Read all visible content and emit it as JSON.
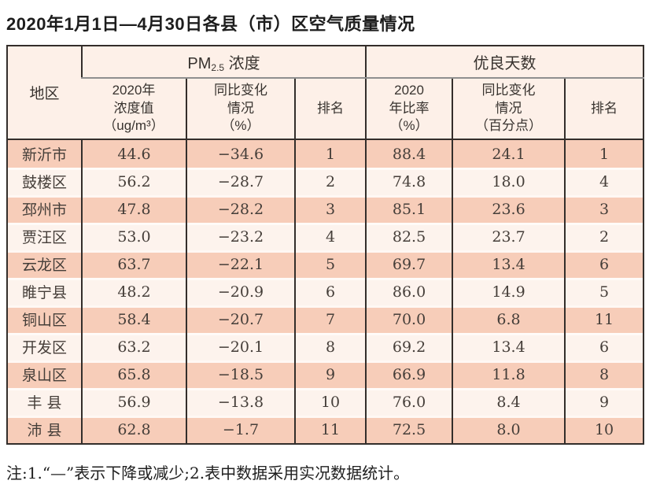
{
  "title": "2020年1月1日—4月30日各县（市）区空气质量情况",
  "table": {
    "region_header": "地区",
    "pm_group": {
      "prefix": "PM",
      "sub": "2.5",
      "suffix": " 浓度"
    },
    "days_group_label": "优良天数",
    "columns": [
      "2020年\n浓度值\n（ug/m³）",
      "同比变化\n情况\n（%）",
      "排名",
      "2020\n年比率\n（%）",
      "同比变化\n情况\n（百分点）",
      "排名"
    ],
    "rows": [
      {
        "region": "新沂市",
        "pm_value": "44.6",
        "pm_change": "−34.6",
        "pm_rank": "1",
        "days_ratio": "88.4",
        "days_change": "24.1",
        "days_rank": "1"
      },
      {
        "region": "鼓楼区",
        "pm_value": "56.2",
        "pm_change": "−28.7",
        "pm_rank": "2",
        "days_ratio": "74.8",
        "days_change": "18.0",
        "days_rank": "4"
      },
      {
        "region": "邳州市",
        "pm_value": "47.8",
        "pm_change": "−28.2",
        "pm_rank": "3",
        "days_ratio": "85.1",
        "days_change": "23.6",
        "days_rank": "3"
      },
      {
        "region": "贾汪区",
        "pm_value": "53.0",
        "pm_change": "−23.2",
        "pm_rank": "4",
        "days_ratio": "82.5",
        "days_change": "23.7",
        "days_rank": "2"
      },
      {
        "region": "云龙区",
        "pm_value": "63.7",
        "pm_change": "−22.1",
        "pm_rank": "5",
        "days_ratio": "69.7",
        "days_change": "13.4",
        "days_rank": "6"
      },
      {
        "region": "睢宁县",
        "pm_value": "48.2",
        "pm_change": "−20.9",
        "pm_rank": "6",
        "days_ratio": "86.0",
        "days_change": "14.9",
        "days_rank": "5"
      },
      {
        "region": "铜山区",
        "pm_value": "58.4",
        "pm_change": "−20.7",
        "pm_rank": "7",
        "days_ratio": "70.0",
        "days_change": "6.8",
        "days_rank": "11"
      },
      {
        "region": "开发区",
        "pm_value": "63.2",
        "pm_change": "−20.1",
        "pm_rank": "8",
        "days_ratio": "69.2",
        "days_change": "13.4",
        "days_rank": "6"
      },
      {
        "region": "泉山区",
        "pm_value": "65.8",
        "pm_change": "−18.5",
        "pm_rank": "9",
        "days_ratio": "66.9",
        "days_change": "11.8",
        "days_rank": "8"
      },
      {
        "region": "丰 县",
        "pm_value": "56.9",
        "pm_change": "−13.8",
        "pm_rank": "10",
        "days_ratio": "76.0",
        "days_change": "8.4",
        "days_rank": "9"
      },
      {
        "region": "沛 县",
        "pm_value": "62.8",
        "pm_change": "−1.7",
        "pm_rank": "11",
        "days_ratio": "72.5",
        "days_change": "8.0",
        "days_rank": "10"
      }
    ]
  },
  "note": "注:1.“—”表示下降或减少;2.表中数据采用实况数据统计。",
  "colors": {
    "band_salmon": "#f7cdb9",
    "band_light": "#fdf3ed",
    "header_bg": "#fdf0e8",
    "border_dark": "#332e2b",
    "divider_gray": "#8f8f8f"
  }
}
